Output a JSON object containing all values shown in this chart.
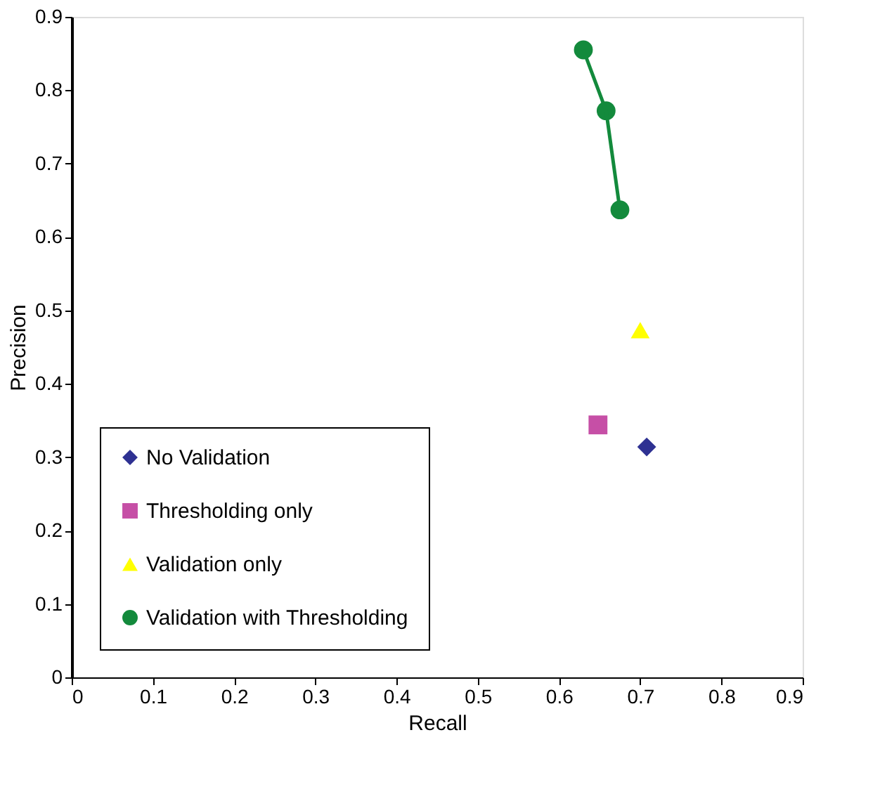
{
  "chart_data": {
    "type": "scatter",
    "xlabel": "Recall",
    "ylabel": "Precision",
    "xlim": [
      0,
      0.9
    ],
    "ylim": [
      0,
      0.9
    ],
    "xticks": [
      0,
      0.1,
      0.2,
      0.3,
      0.4,
      0.5,
      0.6,
      0.7,
      0.8,
      0.9
    ],
    "yticks": [
      0,
      0.1,
      0.2,
      0.3,
      0.4,
      0.5,
      0.6,
      0.7,
      0.8,
      0.9
    ],
    "grid": false,
    "legend": "bottom left",
    "series": [
      {
        "name": "No Validation",
        "type": "scatter",
        "marker": "diamond",
        "color": "#2e3192",
        "x": [
          0.708
        ],
        "values": [
          0.314
        ]
      },
      {
        "name": "Thresholding only",
        "type": "scatter",
        "marker": "square",
        "color": "#c64fa6",
        "x": [
          0.648
        ],
        "values": [
          0.344
        ]
      },
      {
        "name": "Validation only",
        "type": "scatter",
        "marker": "triangle",
        "color": "#ffff00",
        "x": [
          0.7
        ],
        "values": [
          0.473
        ]
      },
      {
        "name": "Validation with Thresholding",
        "type": "line",
        "marker": "circle",
        "line_style": "solid",
        "color": "#138a3c",
        "x": [
          0.63,
          0.658,
          0.675
        ],
        "values": [
          0.855,
          0.772,
          0.637
        ]
      }
    ]
  }
}
